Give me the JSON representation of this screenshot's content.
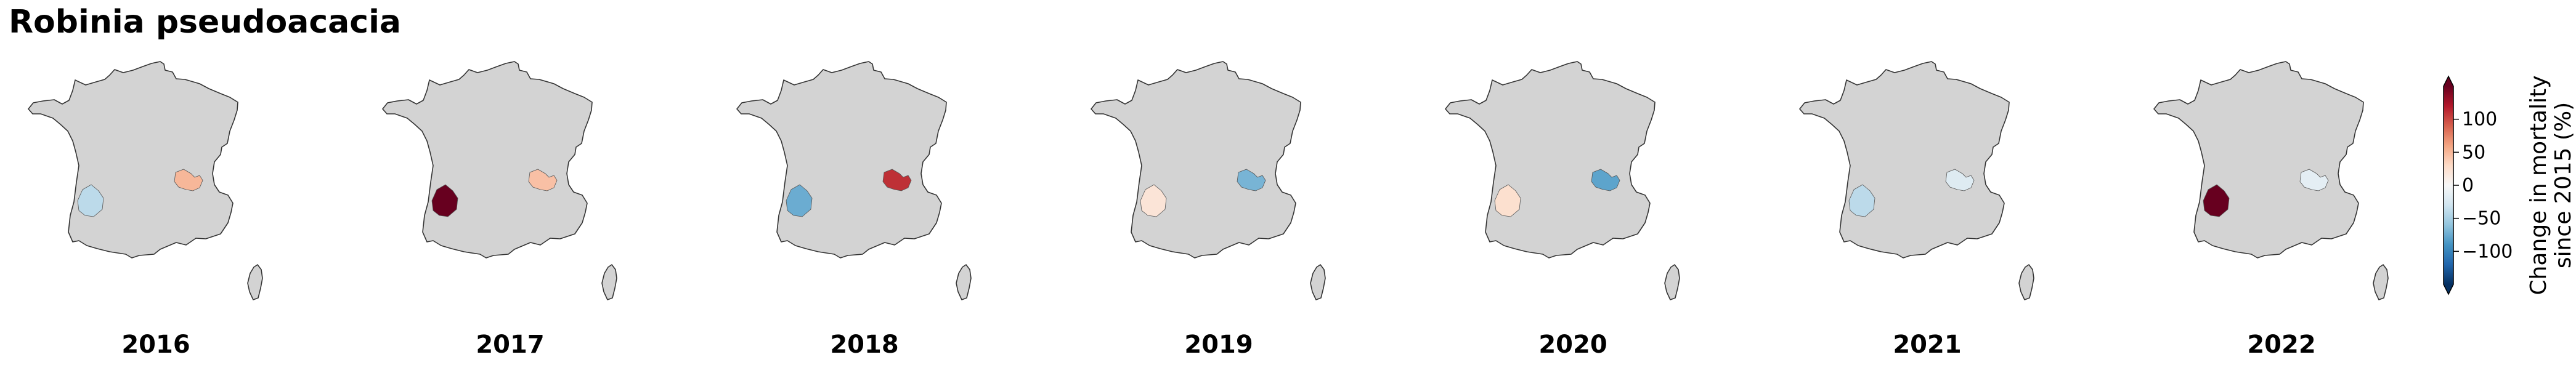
{
  "title": "Robinia pseudoacacia",
  "colors": {
    "land": "#d3d3d3",
    "border": "#333333",
    "cmap": [
      "#053061",
      "#2166ac",
      "#4393c3",
      "#92c5de",
      "#d1e5f0",
      "#f7f7f7",
      "#fddbc7",
      "#f4a582",
      "#d6604d",
      "#b2182b",
      "#67001f"
    ]
  },
  "chart_data": {
    "type": "choropleth-map",
    "title": "Robinia pseudoacacia",
    "regions": [
      "southwest",
      "east"
    ],
    "panels": [
      {
        "year": "2016",
        "values": {
          "southwest": -40,
          "east": 50
        }
      },
      {
        "year": "2017",
        "values": {
          "southwest": 150,
          "east": 45
        }
      },
      {
        "year": "2018",
        "values": {
          "southwest": -75,
          "east": 110
        }
      },
      {
        "year": "2019",
        "values": {
          "southwest": 20,
          "east": -70
        }
      },
      {
        "year": "2020",
        "values": {
          "southwest": 25,
          "east": -80
        }
      },
      {
        "year": "2021",
        "values": {
          "southwest": -40,
          "east": -20
        }
      },
      {
        "year": "2022",
        "values": {
          "southwest": 150,
          "east": -15
        }
      }
    ],
    "colorbar": {
      "label_lines": [
        "Change in mortality",
        "since 2015 (%)"
      ],
      "ticks": [
        100,
        50,
        0,
        -50,
        -100
      ],
      "tick_labels": [
        "100",
        "50",
        "0",
        "−50",
        "−100"
      ],
      "range": [
        -150,
        150
      ],
      "extend": "both"
    }
  }
}
